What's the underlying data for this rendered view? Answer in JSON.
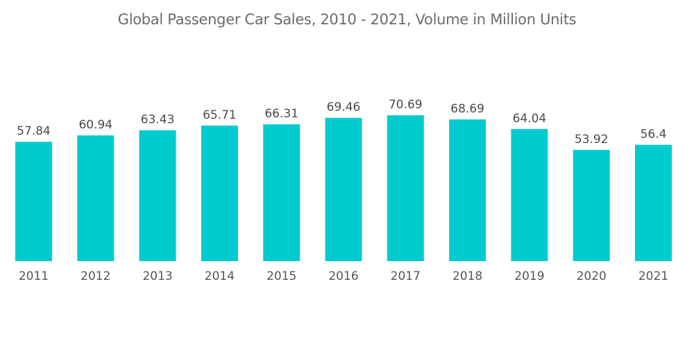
{
  "chart_data": {
    "type": "bar",
    "title": "Global Passenger Car Sales, 2010 - 2021, Volume in Million Units",
    "xlabel": "",
    "ylabel": "",
    "categories": [
      "2011",
      "2012",
      "2013",
      "2014",
      "2015",
      "2016",
      "2017",
      "2018",
      "2019",
      "2020",
      "2021"
    ],
    "values": [
      57.84,
      60.94,
      63.43,
      65.71,
      66.31,
      69.46,
      70.69,
      68.69,
      64.04,
      53.92,
      56.4
    ],
    "value_labels": [
      "57.84",
      "60.94",
      "63.43",
      "65.71",
      "66.31",
      "69.46",
      "70.69",
      "68.69",
      "64.04",
      "53.92",
      "56.4"
    ],
    "ylim": [
      0,
      80
    ],
    "grid": false,
    "legend": "none",
    "bar_color": "#00ccd0"
  }
}
